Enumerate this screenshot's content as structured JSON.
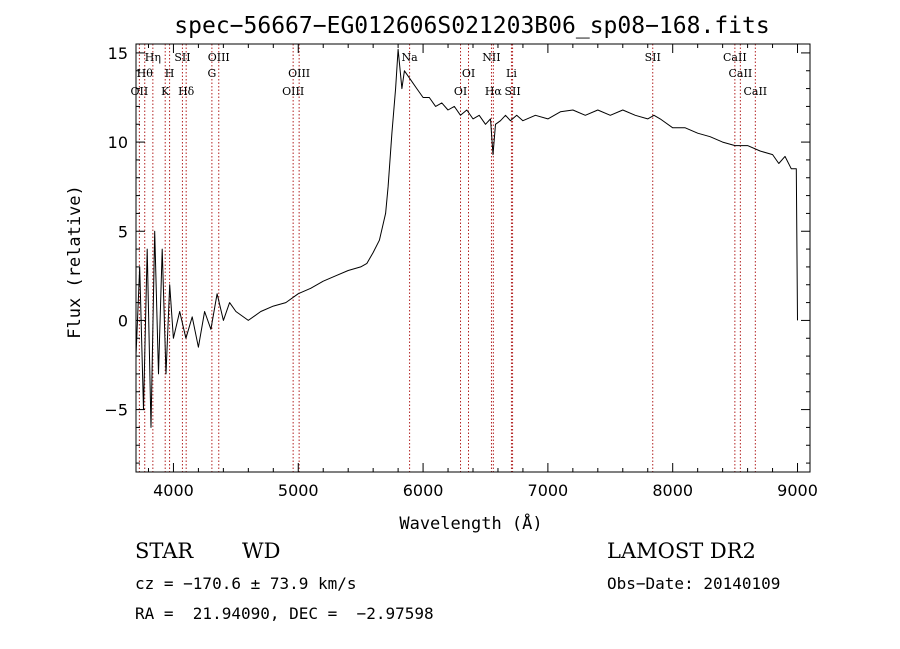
{
  "chart_data": {
    "type": "line",
    "title": "spec−56667−EG012606S021203B06_sp08−168.fits",
    "xlabel": "Wavelength (Å)",
    "ylabel": "Flux (relative)",
    "xlim": [
      3700,
      9100
    ],
    "ylim": [
      -8.5,
      15.5
    ],
    "x_ticks": [
      4000,
      5000,
      6000,
      7000,
      8000,
      9000
    ],
    "x_tick_labels": [
      "4000",
      "5000",
      "6000",
      "7000",
      "8000",
      "9000"
    ],
    "y_ticks": [
      -5,
      0,
      5,
      10,
      15
    ],
    "y_tick_labels": [
      "−5",
      "0",
      "5",
      "10",
      "15"
    ],
    "grid": false,
    "legend": "none",
    "line_color": "#000000",
    "marker_line_color": "#b22222",
    "series": [
      {
        "x": [
          3700,
          3730,
          3760,
          3790,
          3820,
          3850,
          3880,
          3910,
          3940,
          3970,
          4000,
          4050,
          4100,
          4150,
          4200,
          4250,
          4300,
          4350,
          4400,
          4450,
          4500,
          4600,
          4700,
          4800,
          4900,
          5000,
          5100,
          5200,
          5300,
          5400,
          5500,
          5550,
          5600,
          5650,
          5700,
          5720,
          5750,
          5780,
          5800,
          5830,
          5850,
          5900,
          5950,
          6000,
          6050,
          6100,
          6150,
          6200,
          6250,
          6300,
          6350,
          6400,
          6450,
          6500,
          6540,
          6560,
          6580,
          6620,
          6660,
          6700,
          6750,
          6800,
          6900,
          7000,
          7100,
          7200,
          7300,
          7400,
          7500,
          7600,
          7700,
          7800,
          7850,
          7900,
          8000,
          8100,
          8200,
          8300,
          8400,
          8500,
          8600,
          8700,
          8800,
          8850,
          8900,
          8950,
          8990,
          9000
        ],
        "y": [
          -2,
          3,
          -5,
          4,
          -6,
          5,
          -3,
          4,
          -3,
          2,
          -1,
          0.5,
          -1,
          0.2,
          -1.5,
          0.5,
          -0.5,
          1.5,
          0,
          1,
          0.5,
          0,
          0.5,
          0.8,
          1,
          1.5,
          1.8,
          2.2,
          2.5,
          2.8,
          3,
          3.2,
          3.8,
          4.5,
          6,
          7.5,
          10.5,
          13,
          15.2,
          13,
          14,
          13.5,
          13,
          12.5,
          12.5,
          12,
          12.2,
          11.8,
          12,
          11.5,
          11.8,
          11.3,
          11.5,
          11,
          11.3,
          9.3,
          11,
          11.2,
          11.5,
          11.2,
          11.5,
          11.2,
          11.5,
          11.3,
          11.7,
          11.8,
          11.5,
          11.8,
          11.5,
          11.8,
          11.5,
          11.3,
          11.5,
          11.3,
          10.8,
          10.8,
          10.5,
          10.3,
          10,
          9.8,
          9.8,
          9.5,
          9.3,
          8.8,
          9.2,
          8.5,
          8.5,
          0
        ]
      }
    ],
    "line_markers": [
      {
        "wave": 3727,
        "label": "OII",
        "row": 3
      },
      {
        "wave": 3770,
        "label": "Hθ",
        "row": 2
      },
      {
        "wave": 3835,
        "label": "Hη",
        "row": 1
      },
      {
        "wave": 3934,
        "label": "K",
        "row": 3
      },
      {
        "wave": 3969,
        "label": "H",
        "row": 2
      },
      {
        "wave": 4072,
        "label": "SII",
        "row": 1
      },
      {
        "wave": 4102,
        "label": "Hδ",
        "row": 3
      },
      {
        "wave": 4308,
        "label": "G",
        "row": 2
      },
      {
        "wave": 4363,
        "label": "OIII",
        "row": 1
      },
      {
        "wave": 4959,
        "label": "OIII",
        "row": 3
      },
      {
        "wave": 5007,
        "label": "OIII",
        "row": 2
      },
      {
        "wave": 5892,
        "label": "Na",
        "row": 1
      },
      {
        "wave": 6300,
        "label": "OI",
        "row": 3
      },
      {
        "wave": 6364,
        "label": "OI",
        "row": 2
      },
      {
        "wave": 6548,
        "label": "NII",
        "row": 1
      },
      {
        "wave": 6563,
        "label": "Hα",
        "row": 3
      },
      {
        "wave": 6708,
        "label": "Li",
        "row": 2
      },
      {
        "wave": 6717,
        "label": "SII",
        "row": 3
      },
      {
        "wave": 7840,
        "label": "SII",
        "row": 1
      },
      {
        "wave": 8498,
        "label": "CaII",
        "row": 1
      },
      {
        "wave": 8542,
        "label": "CaII",
        "row": 2
      },
      {
        "wave": 8662,
        "label": "CaII",
        "row": 3
      }
    ]
  },
  "info": {
    "object_class": "STAR",
    "subclass": "WD",
    "survey": "LAMOST DR2",
    "redshift_line": "cz = −170.6 ± 73.9 km/s",
    "obs_date_line": "Obs−Date: 20140109",
    "coords_line": "RA =  21.94090, DEC =  −2.97598"
  }
}
